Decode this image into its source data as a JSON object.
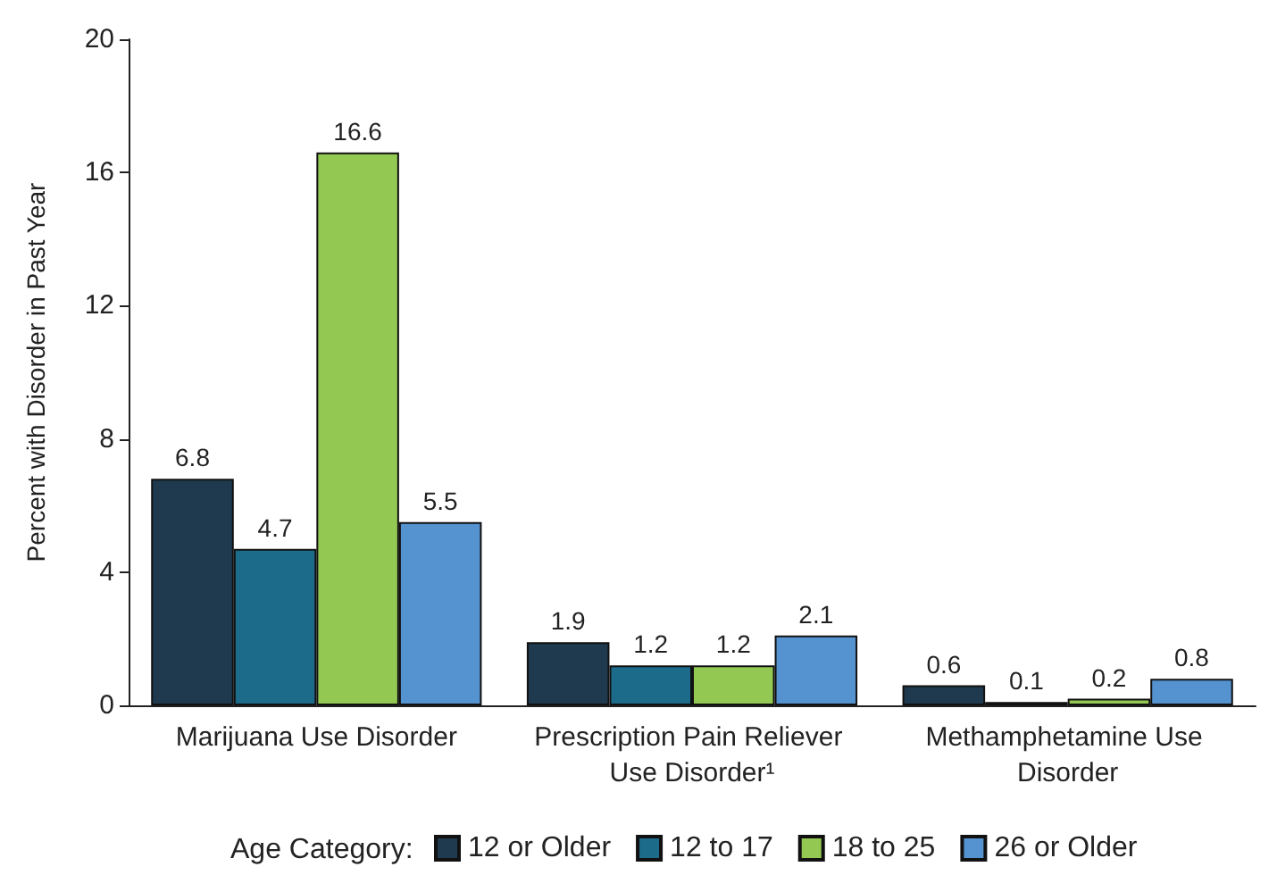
{
  "chart_data": {
    "type": "bar",
    "ylabel": "Percent with Disorder in Past Year",
    "legend_title": "Age Category:",
    "categories": [
      "Marijuana Use Disorder",
      "Prescription Pain Reliever Use Disorder¹",
      "Methamphetamine Use Disorder"
    ],
    "series": [
      {
        "name": "12 or Older",
        "color": "#1f3a4f",
        "values": [
          6.8,
          1.9,
          0.6
        ]
      },
      {
        "name": "12 to 17",
        "color": "#1c6b8a",
        "values": [
          4.7,
          1.2,
          0.1
        ]
      },
      {
        "name": "18 to 25",
        "color": "#93c952",
        "values": [
          16.6,
          1.2,
          0.2
        ]
      },
      {
        "name": "26 or Older",
        "color": "#5592d0",
        "values": [
          5.5,
          2.1,
          0.8
        ]
      }
    ],
    "ylim": [
      0,
      20
    ],
    "yticks": [
      0,
      4,
      8,
      12,
      16,
      20
    ],
    "grid": false,
    "legend": "bottom",
    "data_labels": true
  }
}
